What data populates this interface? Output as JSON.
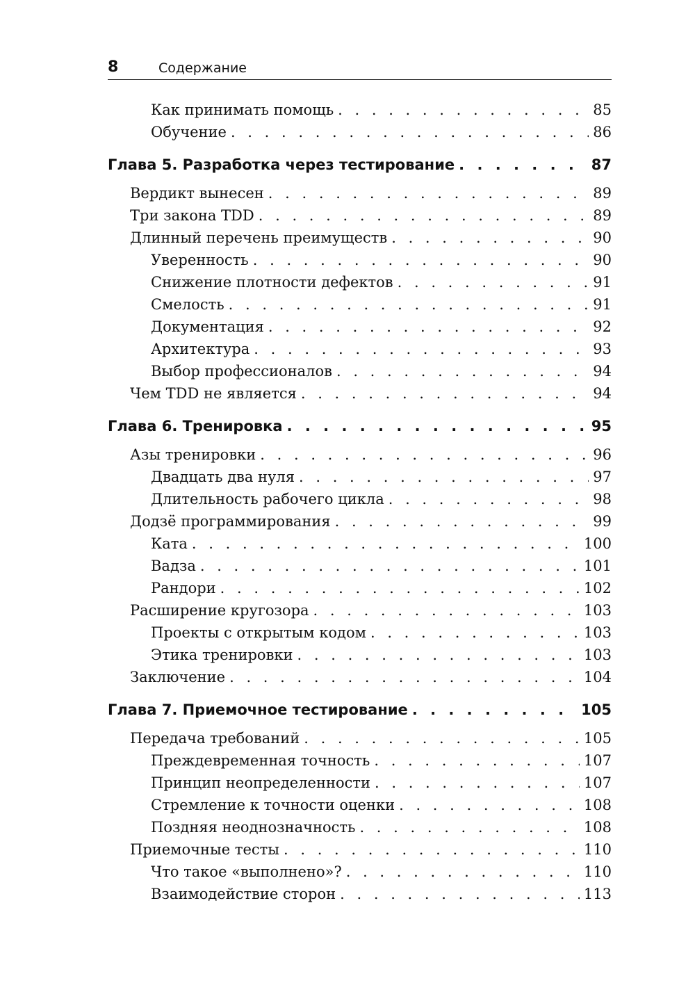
{
  "header": {
    "page_number": "8",
    "title": "Содержание"
  },
  "entries": [
    {
      "level": 2,
      "title": "Как принимать помощь",
      "page": "85"
    },
    {
      "level": 2,
      "title": "Обучение",
      "page": "86"
    },
    {
      "level": 0,
      "title": "Глава 5. Разработка через тестирование",
      "page": "87"
    },
    {
      "level": 1,
      "title": "Вердикт вынесен",
      "page": "89"
    },
    {
      "level": 1,
      "title": "Три закона TDD",
      "page": "89"
    },
    {
      "level": 1,
      "title": "Длинный перечень преимуществ",
      "page": "90"
    },
    {
      "level": 2,
      "title": "Уверенность",
      "page": "90"
    },
    {
      "level": 2,
      "title": "Снижение плотности дефектов",
      "page": "91"
    },
    {
      "level": 2,
      "title": "Смелость",
      "page": "91"
    },
    {
      "level": 2,
      "title": "Документация",
      "page": "92"
    },
    {
      "level": 2,
      "title": "Архитектура",
      "page": "93"
    },
    {
      "level": 2,
      "title": "Выбор профессионалов",
      "page": "94"
    },
    {
      "level": 1,
      "title": "Чем TDD не является",
      "page": "94"
    },
    {
      "level": 0,
      "title": "Глава 6. Тренировка",
      "page": "95"
    },
    {
      "level": 1,
      "title": "Азы тренировки",
      "page": "96"
    },
    {
      "level": 2,
      "title": "Двадцать два нуля",
      "page": "97"
    },
    {
      "level": 2,
      "title": "Длительность рабочего цикла",
      "page": "98"
    },
    {
      "level": 1,
      "title": "Додзё программирования",
      "page": "99"
    },
    {
      "level": 2,
      "title": "Ката",
      "page": "100"
    },
    {
      "level": 2,
      "title": "Вадза",
      "page": "101"
    },
    {
      "level": 2,
      "title": "Рандори",
      "page": "102"
    },
    {
      "level": 1,
      "title": "Расширение кругозора",
      "page": "103"
    },
    {
      "level": 2,
      "title": "Проекты с открытым кодом",
      "page": "103"
    },
    {
      "level": 2,
      "title": "Этика тренировки",
      "page": "103"
    },
    {
      "level": 1,
      "title": "Заключение",
      "page": "104"
    },
    {
      "level": 0,
      "title": "Глава 7. Приемочное тестирование",
      "page": "105"
    },
    {
      "level": 1,
      "title": "Передача требований",
      "page": "105"
    },
    {
      "level": 2,
      "title": "Преждевременная точность",
      "page": "107"
    },
    {
      "level": 2,
      "title": "Принцип неопределенности",
      "page": "107"
    },
    {
      "level": 2,
      "title": "Стремление к точности оценки",
      "page": "108"
    },
    {
      "level": 2,
      "title": "Поздняя неоднозначность",
      "page": "108"
    },
    {
      "level": 1,
      "title": "Приемочные тесты",
      "page": "110"
    },
    {
      "level": 2,
      "title": "Что такое «выполнено»?",
      "page": "110"
    },
    {
      "level": 2,
      "title": "Взаимодействие сторон",
      "page": "113"
    }
  ]
}
